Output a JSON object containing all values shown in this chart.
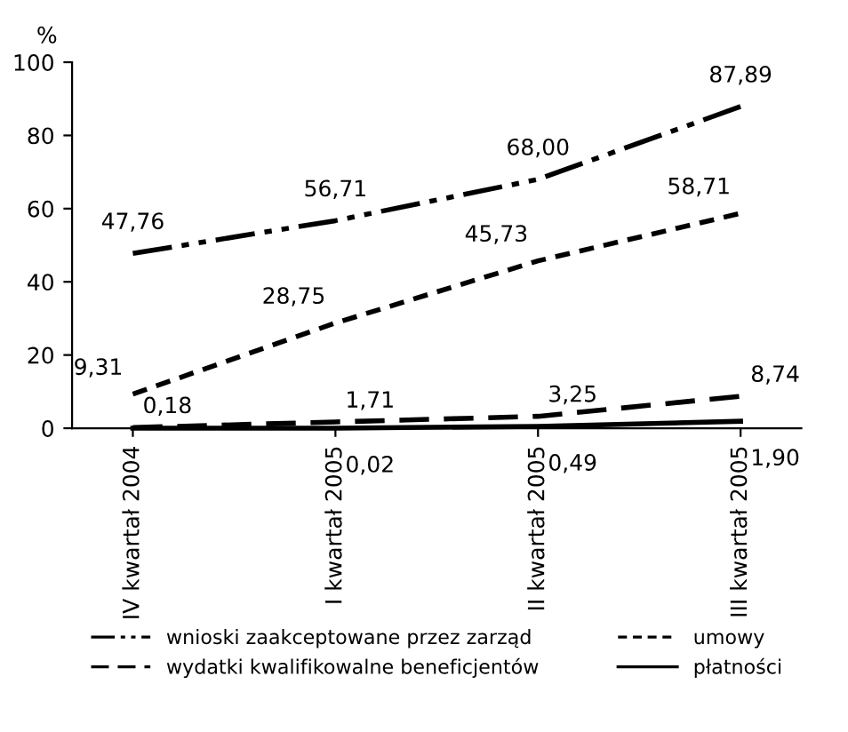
{
  "chart_data": {
    "type": "line",
    "ylabel": "%",
    "categories": [
      "IV kwartał 2004",
      "I kwartał 2005",
      "II kwartał 2005",
      "III kwartał 2005"
    ],
    "series": [
      {
        "name": "wnioski zaakceptowane przez zarząd",
        "color": "#000000",
        "line_style": "dashdotdot",
        "values": [
          47.76,
          56.71,
          68.0,
          87.89
        ],
        "value_labels": [
          "47,76",
          "56,71",
          "68,00",
          "87,89"
        ]
      },
      {
        "name": "wydatki kwalifikowalne beneficjentów",
        "color": "#000000",
        "line_style": "dashed",
        "values": [
          0.18,
          1.71,
          3.25,
          8.74
        ],
        "value_labels": [
          "0,18",
          "1,71",
          "3,25",
          "8,74"
        ]
      },
      {
        "name": "umowy",
        "color": "#000000",
        "line_style": "dotted",
        "values": [
          9.31,
          28.75,
          45.73,
          58.71
        ],
        "value_labels": [
          "9,31",
          "28,75",
          "45,73",
          "58,71"
        ]
      },
      {
        "name": "płatności",
        "color": "#000000",
        "line_style": "solid",
        "values": [
          0,
          0.02,
          0.49,
          1.9
        ],
        "value_labels": [
          null,
          "0,02",
          "0,49",
          "1,90"
        ]
      }
    ],
    "ylim": [
      0,
      100
    ],
    "yticks": [
      0,
      20,
      40,
      60,
      80,
      100
    ],
    "grid": false,
    "legend": "bottom",
    "marker": "none"
  }
}
